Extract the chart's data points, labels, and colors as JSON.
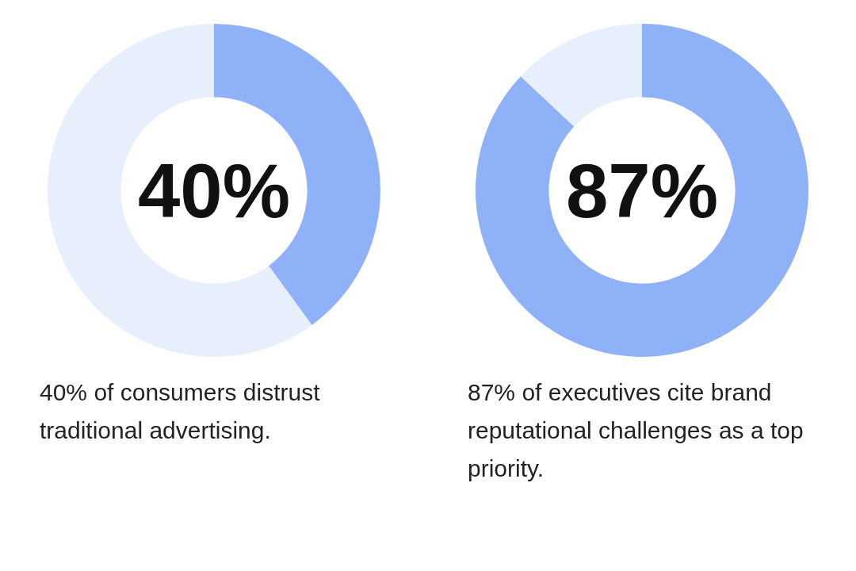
{
  "chart_data": [
    {
      "type": "donut",
      "categories": [
        null,
        null
      ],
      "values": [
        40,
        60
      ],
      "colors": [
        "#8fb1f7",
        "#e8effc"
      ],
      "annotations": [
        "40%",
        "40% of consumers distrust traditional advertising."
      ]
    },
    {
      "type": "donut",
      "categories": [
        null,
        null
      ],
      "values": [
        87,
        13
      ],
      "colors": [
        "#8fb1f7",
        "#e8effc"
      ],
      "annotations": [
        "87%",
        "87% of executives cite brand reputational challenges as a top priority."
      ]
    }
  ]
}
